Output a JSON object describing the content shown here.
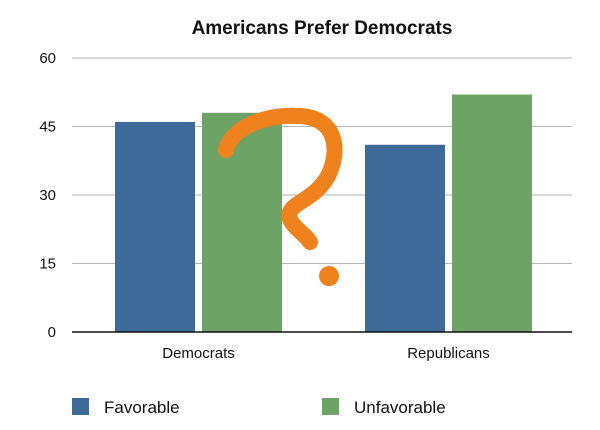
{
  "chart_data": {
    "type": "bar",
    "title": "Americans Prefer Democrats",
    "categories": [
      "Democrats",
      "Republicans"
    ],
    "series": [
      {
        "name": "Favorable",
        "values": [
          46,
          41
        ],
        "color": "#3d6a99"
      },
      {
        "name": "Unfavorable",
        "values": [
          48,
          52
        ],
        "color": "#6da365"
      }
    ],
    "ylim": [
      0,
      60
    ],
    "yticks": [
      0,
      15,
      30,
      45,
      60
    ],
    "grid": true,
    "legend": "bottom",
    "xlabel": "",
    "ylabel": "",
    "annotation": {
      "symbol": "question-mark",
      "color": "#f0821e"
    }
  }
}
